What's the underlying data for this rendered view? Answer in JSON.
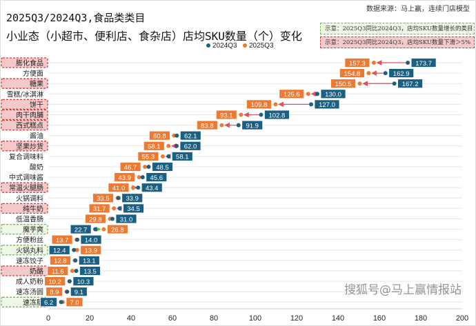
{
  "source": "数据来源：马上赢，连续门店模型",
  "title_line1": "2025Q3/2024Q3,食品类类目",
  "title_line2": "小业态（小超市、便利店、食杂店）店均SKU数量（个）变化",
  "notes": {
    "growth": "示意：2025Q3同比2024Q3，店均SKU数量增长的类目",
    "decline": "示意：2025Q3同比2024Q3，店均SKU数量下滑＞5%"
  },
  "watermark": "搜狐号@马上赢情报站",
  "colors": {
    "2024Q3": "#1b5f82",
    "2025Q3": "#ec7a33",
    "decline_arrow": "#e0505a",
    "growth_arrow": "#6bbf3f",
    "decline_box_fill": "#f3c9ca",
    "decline_box_border": "#d23a3a",
    "growth_box_fill": "#eef7e6",
    "growth_box_border": "#6bbf3f"
  },
  "chart_data": {
    "type": "dumbbell",
    "legend_position": "top",
    "xlim": [
      0,
      200
    ],
    "xticks": [
      0,
      20,
      40,
      60,
      80,
      100,
      120,
      140,
      160,
      180,
      200
    ],
    "grid": true,
    "series_names": [
      "2024Q3",
      "2025Q3"
    ],
    "rows": [
      {
        "category": "膨化食品",
        "v2024": 173.7,
        "v2025": 157.3,
        "highlight": "decline"
      },
      {
        "category": "方便面",
        "v2024": 162.9,
        "v2025": 154.8,
        "highlight": ""
      },
      {
        "category": "糖果",
        "v2024": 167.2,
        "v2025": 150.5,
        "highlight": "decline"
      },
      {
        "category": "雪糕/冰淇淋",
        "v2024": 130.0,
        "v2025": 125.6,
        "highlight": ""
      },
      {
        "category": "饼干",
        "v2024": 127.0,
        "v2025": 109.8,
        "highlight": "decline"
      },
      {
        "category": "肉干肉脯",
        "v2024": 102.8,
        "v2025": 93.1,
        "highlight": "decline"
      },
      {
        "category": "西式糕点",
        "v2024": 91.9,
        "v2025": 83.8,
        "highlight": "decline"
      },
      {
        "category": "酱油",
        "v2024": 62.1,
        "v2025": 60.8,
        "highlight": ""
      },
      {
        "category": "坚果炒货",
        "v2024": 62.0,
        "v2025": 58.1,
        "highlight": "decline"
      },
      {
        "category": "复合调味料",
        "v2024": 58.1,
        "v2025": 55.3,
        "highlight": ""
      },
      {
        "category": "酸奶",
        "v2024": 48.5,
        "v2025": 46.7,
        "highlight": ""
      },
      {
        "category": "中式调味酱",
        "v2024": 45.6,
        "v2025": 43.9,
        "highlight": ""
      },
      {
        "category": "常温火腿肠",
        "v2024": 43.4,
        "v2025": 41.0,
        "highlight": "decline"
      },
      {
        "category": "火锅调料",
        "v2024": 33.9,
        "v2025": 33.5,
        "highlight": ""
      },
      {
        "category": "纯牛奶",
        "v2024": 34.5,
        "v2025": 31.7,
        "highlight": "decline"
      },
      {
        "category": "低温香肠",
        "v2024": 31.0,
        "v2025": 29.8,
        "highlight": ""
      },
      {
        "category": "魔芋爽",
        "v2024": 22.7,
        "v2025": 26.8,
        "highlight": "growth"
      },
      {
        "category": "方便粉丝",
        "v2024": 14.0,
        "v2025": 13.7,
        "highlight": ""
      },
      {
        "category": "火锅丸料",
        "v2024": 12.4,
        "v2025": 13.9,
        "highlight": "growth"
      },
      {
        "category": "速冻饺子",
        "v2024": 13.1,
        "v2025": 12.8,
        "highlight": ""
      },
      {
        "category": "奶酪",
        "v2024": 13.5,
        "v2025": 11.6,
        "highlight": "decline"
      },
      {
        "category": "成人奶粉",
        "v2024": 10.3,
        "v2025": 10.2,
        "highlight": ""
      },
      {
        "category": "速冻汤圆",
        "v2024": 9.1,
        "v2025": 8.9,
        "highlight": ""
      },
      {
        "category": "速冻肠",
        "v2024": 6.2,
        "v2025": 7.0,
        "highlight": "growth"
      }
    ]
  }
}
